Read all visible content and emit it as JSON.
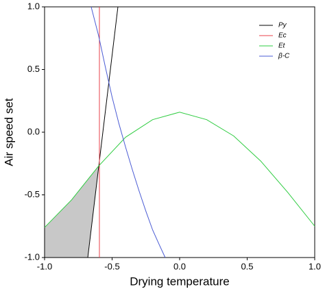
{
  "chart_data": {
    "type": "line",
    "xlabel": "Drying temperature",
    "ylabel": "Air speed set",
    "xlim": [
      -1,
      1
    ],
    "ylim": [
      -1,
      1
    ],
    "xticks": [
      {
        "value": -1,
        "label": "-1.0"
      },
      -0.5,
      {
        "value": 0,
        "label": "0.0"
      },
      0.5,
      {
        "value": 1,
        "label": "1.0"
      }
    ],
    "yticks": [
      {
        "value": -1,
        "label": "-1.0"
      },
      -0.5,
      {
        "value": 0,
        "label": "0.0"
      },
      0.5,
      {
        "value": 1,
        "label": "1.0"
      }
    ],
    "legend": "upper right",
    "region_color": "#c8c8c8",
    "series": [
      {
        "name": "Py",
        "color": "#000000",
        "x": [
          -0.68,
          -0.457
        ],
        "values": [
          -1,
          1
        ]
      },
      {
        "name": "Ec",
        "color": "#e8404a",
        "x": [
          -0.594,
          -0.594
        ],
        "values": [
          -1,
          1
        ]
      },
      {
        "name": "Et",
        "color": "#2ecc40",
        "x": [
          -1,
          -0.8,
          -0.6,
          -0.4,
          -0.2,
          0,
          0.2,
          0.4,
          0.6,
          0.8,
          1
        ],
        "values": [
          -0.76,
          -0.54,
          -0.27,
          -0.04,
          0.1,
          0.16,
          0.1,
          -0.03,
          -0.23,
          -0.48,
          -0.75
        ]
      },
      {
        "name": "β-C",
        "color": "#4a5bd4",
        "x": [
          -0.655,
          -0.6,
          -0.55,
          -0.5,
          -0.45,
          -0.4,
          -0.35,
          -0.3,
          -0.25,
          -0.2,
          -0.15,
          -0.107
        ],
        "values": [
          1,
          0.77,
          0.52,
          0.28,
          0.07,
          -0.12,
          -0.3,
          -0.47,
          -0.63,
          -0.78,
          -0.9,
          -1
        ]
      }
    ]
  }
}
